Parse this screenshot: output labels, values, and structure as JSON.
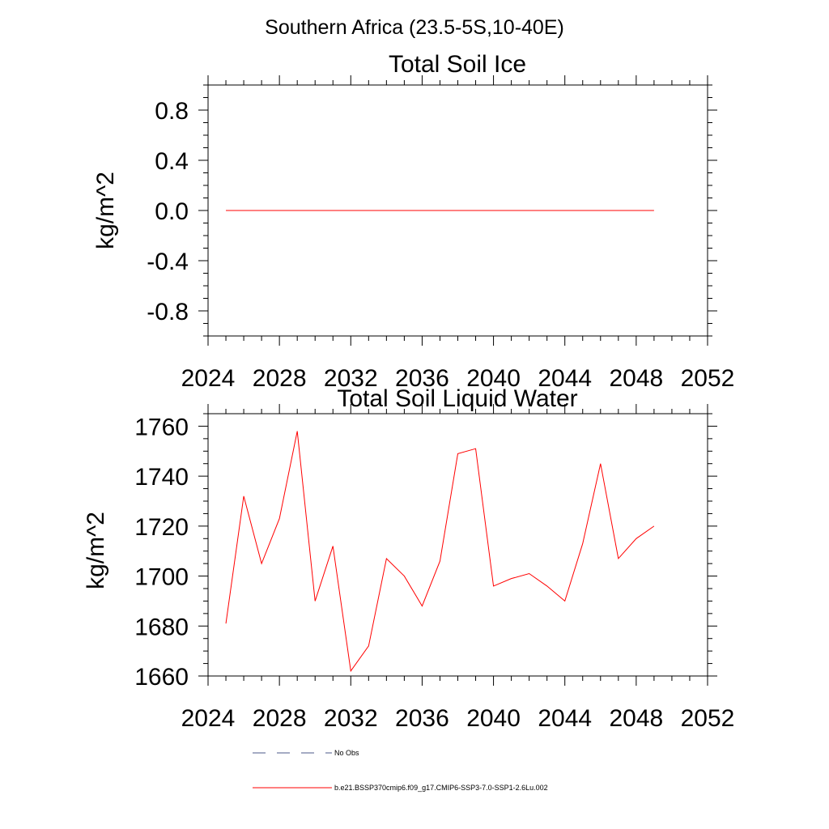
{
  "figure": {
    "suptitle": "Southern Africa (23.5-5S,10-40E)",
    "legend": [
      {
        "label": "No Obs",
        "style": "dashed",
        "color": "#4b5a8a"
      },
      {
        "label": "b.e21.BSSP370cmip6.f09_g17.CMIP6-SSP3-7.0-SSP1-2.6Lu.002",
        "style": "solid",
        "color": "#ff0000"
      }
    ]
  },
  "chart_data": [
    {
      "type": "line",
      "title": "Total Soil Ice",
      "xlabel": "",
      "ylabel": "kg/m^2",
      "xlim": [
        2024,
        2052
      ],
      "ylim": [
        -1.0,
        1.0
      ],
      "xticks": [
        2024,
        2028,
        2032,
        2036,
        2040,
        2044,
        2048,
        2052
      ],
      "xtick_labels": [
        "2024",
        "2028",
        "2032",
        "2036",
        "2040",
        "2044",
        "2048",
        "2052"
      ],
      "yticks": [
        0.8,
        0.4,
        0.0,
        -0.4,
        -0.8
      ],
      "ytick_labels": [
        "0.8",
        "0.4",
        "0.0",
        "-0.4",
        "-0.8"
      ],
      "grid": false,
      "series": [
        {
          "color": "#ff0000",
          "x": [
            2025,
            2026,
            2027,
            2028,
            2029,
            2030,
            2031,
            2032,
            2033,
            2034,
            2035,
            2036,
            2037,
            2038,
            2039,
            2040,
            2041,
            2042,
            2043,
            2044,
            2045,
            2046,
            2047,
            2048,
            2049
          ],
          "y": [
            0,
            0,
            0,
            0,
            0,
            0,
            0,
            0,
            0,
            0,
            0,
            0,
            0,
            0,
            0,
            0,
            0,
            0,
            0,
            0,
            0,
            0,
            0,
            0,
            0
          ]
        }
      ]
    },
    {
      "type": "line",
      "title": "Total Soil Liquid Water",
      "xlabel": "",
      "ylabel": "kg/m^2",
      "xlim": [
        2024,
        2052
      ],
      "ylim": [
        1660,
        1765
      ],
      "xticks": [
        2024,
        2028,
        2032,
        2036,
        2040,
        2044,
        2048,
        2052
      ],
      "xtick_labels": [
        "2024",
        "2028",
        "2032",
        "2036",
        "2040",
        "2044",
        "2048",
        "2052"
      ],
      "yticks": [
        1760,
        1740,
        1720,
        1700,
        1680,
        1660
      ],
      "ytick_labels": [
        "1760",
        "1740",
        "1720",
        "1700",
        "1680",
        "1660"
      ],
      "grid": false,
      "series": [
        {
          "color": "#ff0000",
          "x": [
            2025,
            2026,
            2027,
            2028,
            2029,
            2030,
            2031,
            2032,
            2033,
            2034,
            2035,
            2036,
            2037,
            2038,
            2039,
            2040,
            2041,
            2042,
            2043,
            2044,
            2045,
            2046,
            2047,
            2048,
            2049
          ],
          "y": [
            1681,
            1732,
            1705,
            1723,
            1758,
            1690,
            1712,
            1662,
            1672,
            1707,
            1700,
            1688,
            1706,
            1749,
            1751,
            1696,
            1699,
            1701,
            1696,
            1690,
            1713,
            1745,
            1707,
            1715,
            1720
          ]
        }
      ]
    }
  ]
}
